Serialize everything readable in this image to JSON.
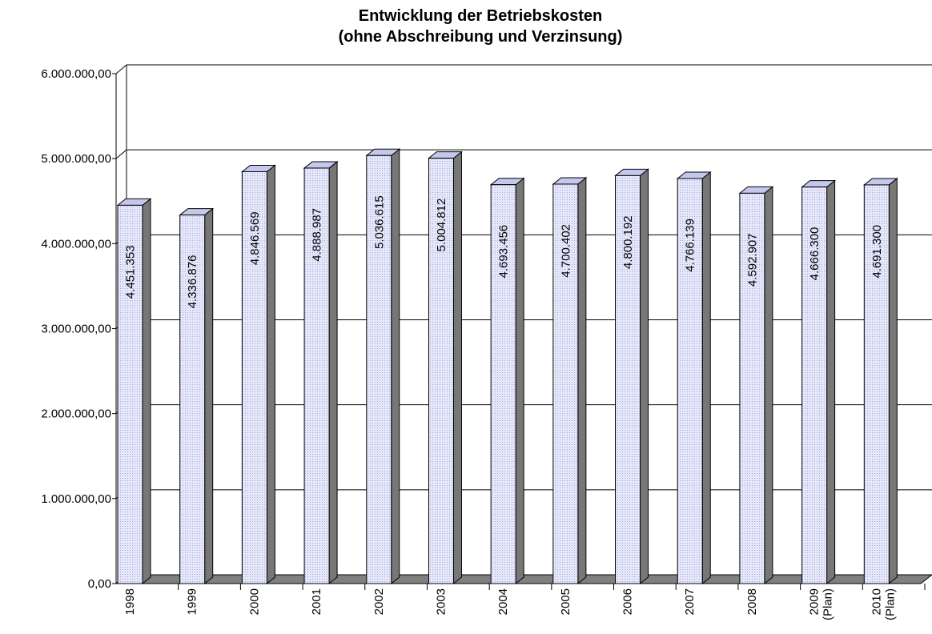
{
  "chart_data": {
    "type": "bar3d",
    "title": [
      "Entwicklung der Betriebskosten",
      "(ohne Abschreibung und Verzinsung)"
    ],
    "categories": [
      [
        "1998"
      ],
      [
        "1999"
      ],
      [
        "2000"
      ],
      [
        "2001"
      ],
      [
        "2002"
      ],
      [
        "2003"
      ],
      [
        "2004"
      ],
      [
        "2005"
      ],
      [
        "2006"
      ],
      [
        "2007"
      ],
      [
        "2008"
      ],
      [
        "2009",
        "(Plan)"
      ],
      [
        "2010",
        "(Plan)"
      ]
    ],
    "values": [
      4451353,
      4336876,
      4846569,
      4888987,
      5036615,
      5004812,
      4693456,
      4700402,
      4800192,
      4766139,
      4592907,
      4666300,
      4691300
    ],
    "value_labels": [
      "4.451.353",
      "4.336.876",
      "4.846.569",
      "4.888.987",
      "5.036.615",
      "5.004.812",
      "4.693.456",
      "4.700.402",
      "4.800.192",
      "4.766.139",
      "4.592.907",
      "4.666.300",
      "4.691.300"
    ],
    "color": "#d4d8f4",
    "ylim": [
      0,
      6000000
    ],
    "yticks": [
      {
        "value": 0,
        "label": "0,00"
      },
      {
        "value": 1000000,
        "label": "1.000.000,00"
      },
      {
        "value": 2000000,
        "label": "2.000.000,00"
      },
      {
        "value": 3000000,
        "label": "3.000.000,00"
      },
      {
        "value": 4000000,
        "label": "4.000.000,00"
      },
      {
        "value": 5000000,
        "label": "5.000.000,00"
      },
      {
        "value": 6000000,
        "label": "6.000.000,00"
      }
    ],
    "grid": true
  }
}
